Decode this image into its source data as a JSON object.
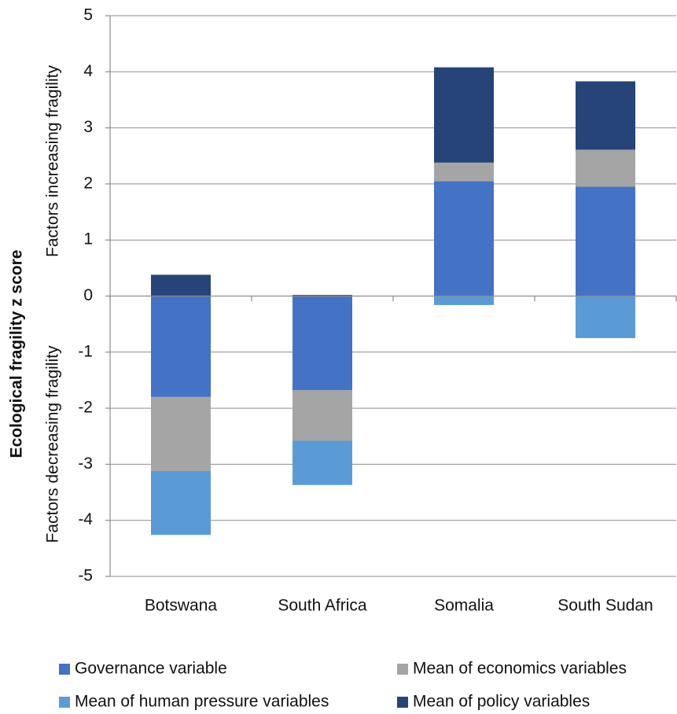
{
  "chart_data": {
    "type": "stacked_bar",
    "y_label": "Ecological fragility z score",
    "annotations": [
      "Factors increasing fragility",
      "Factors decreasing fragility"
    ],
    "categories": [
      "Botswana",
      "South Africa",
      "Somalia",
      "South Sudan"
    ],
    "series": [
      {
        "name": "Governance variable",
        "color": "#4472c4",
        "values": [
          -1.8,
          -1.68,
          2.05,
          1.95
        ]
      },
      {
        "name": "Mean of economics variables",
        "color": "#a5a5a5",
        "values": [
          -1.32,
          -0.9,
          0.33,
          0.66
        ]
      },
      {
        "name": "Mean of human pressure variables",
        "color": "#5b9bd5",
        "values": [
          -1.14,
          -0.79,
          -0.16,
          -0.75
        ]
      },
      {
        "name": "Mean of policy variables",
        "color": "#264478",
        "values": [
          0.38,
          0.02,
          1.7,
          1.22
        ]
      }
    ],
    "ylim": [
      -5,
      5
    ],
    "yticks": [
      -5,
      -4,
      -3,
      -2,
      -1,
      0,
      1,
      2,
      3,
      4,
      5
    ],
    "grid": true
  }
}
